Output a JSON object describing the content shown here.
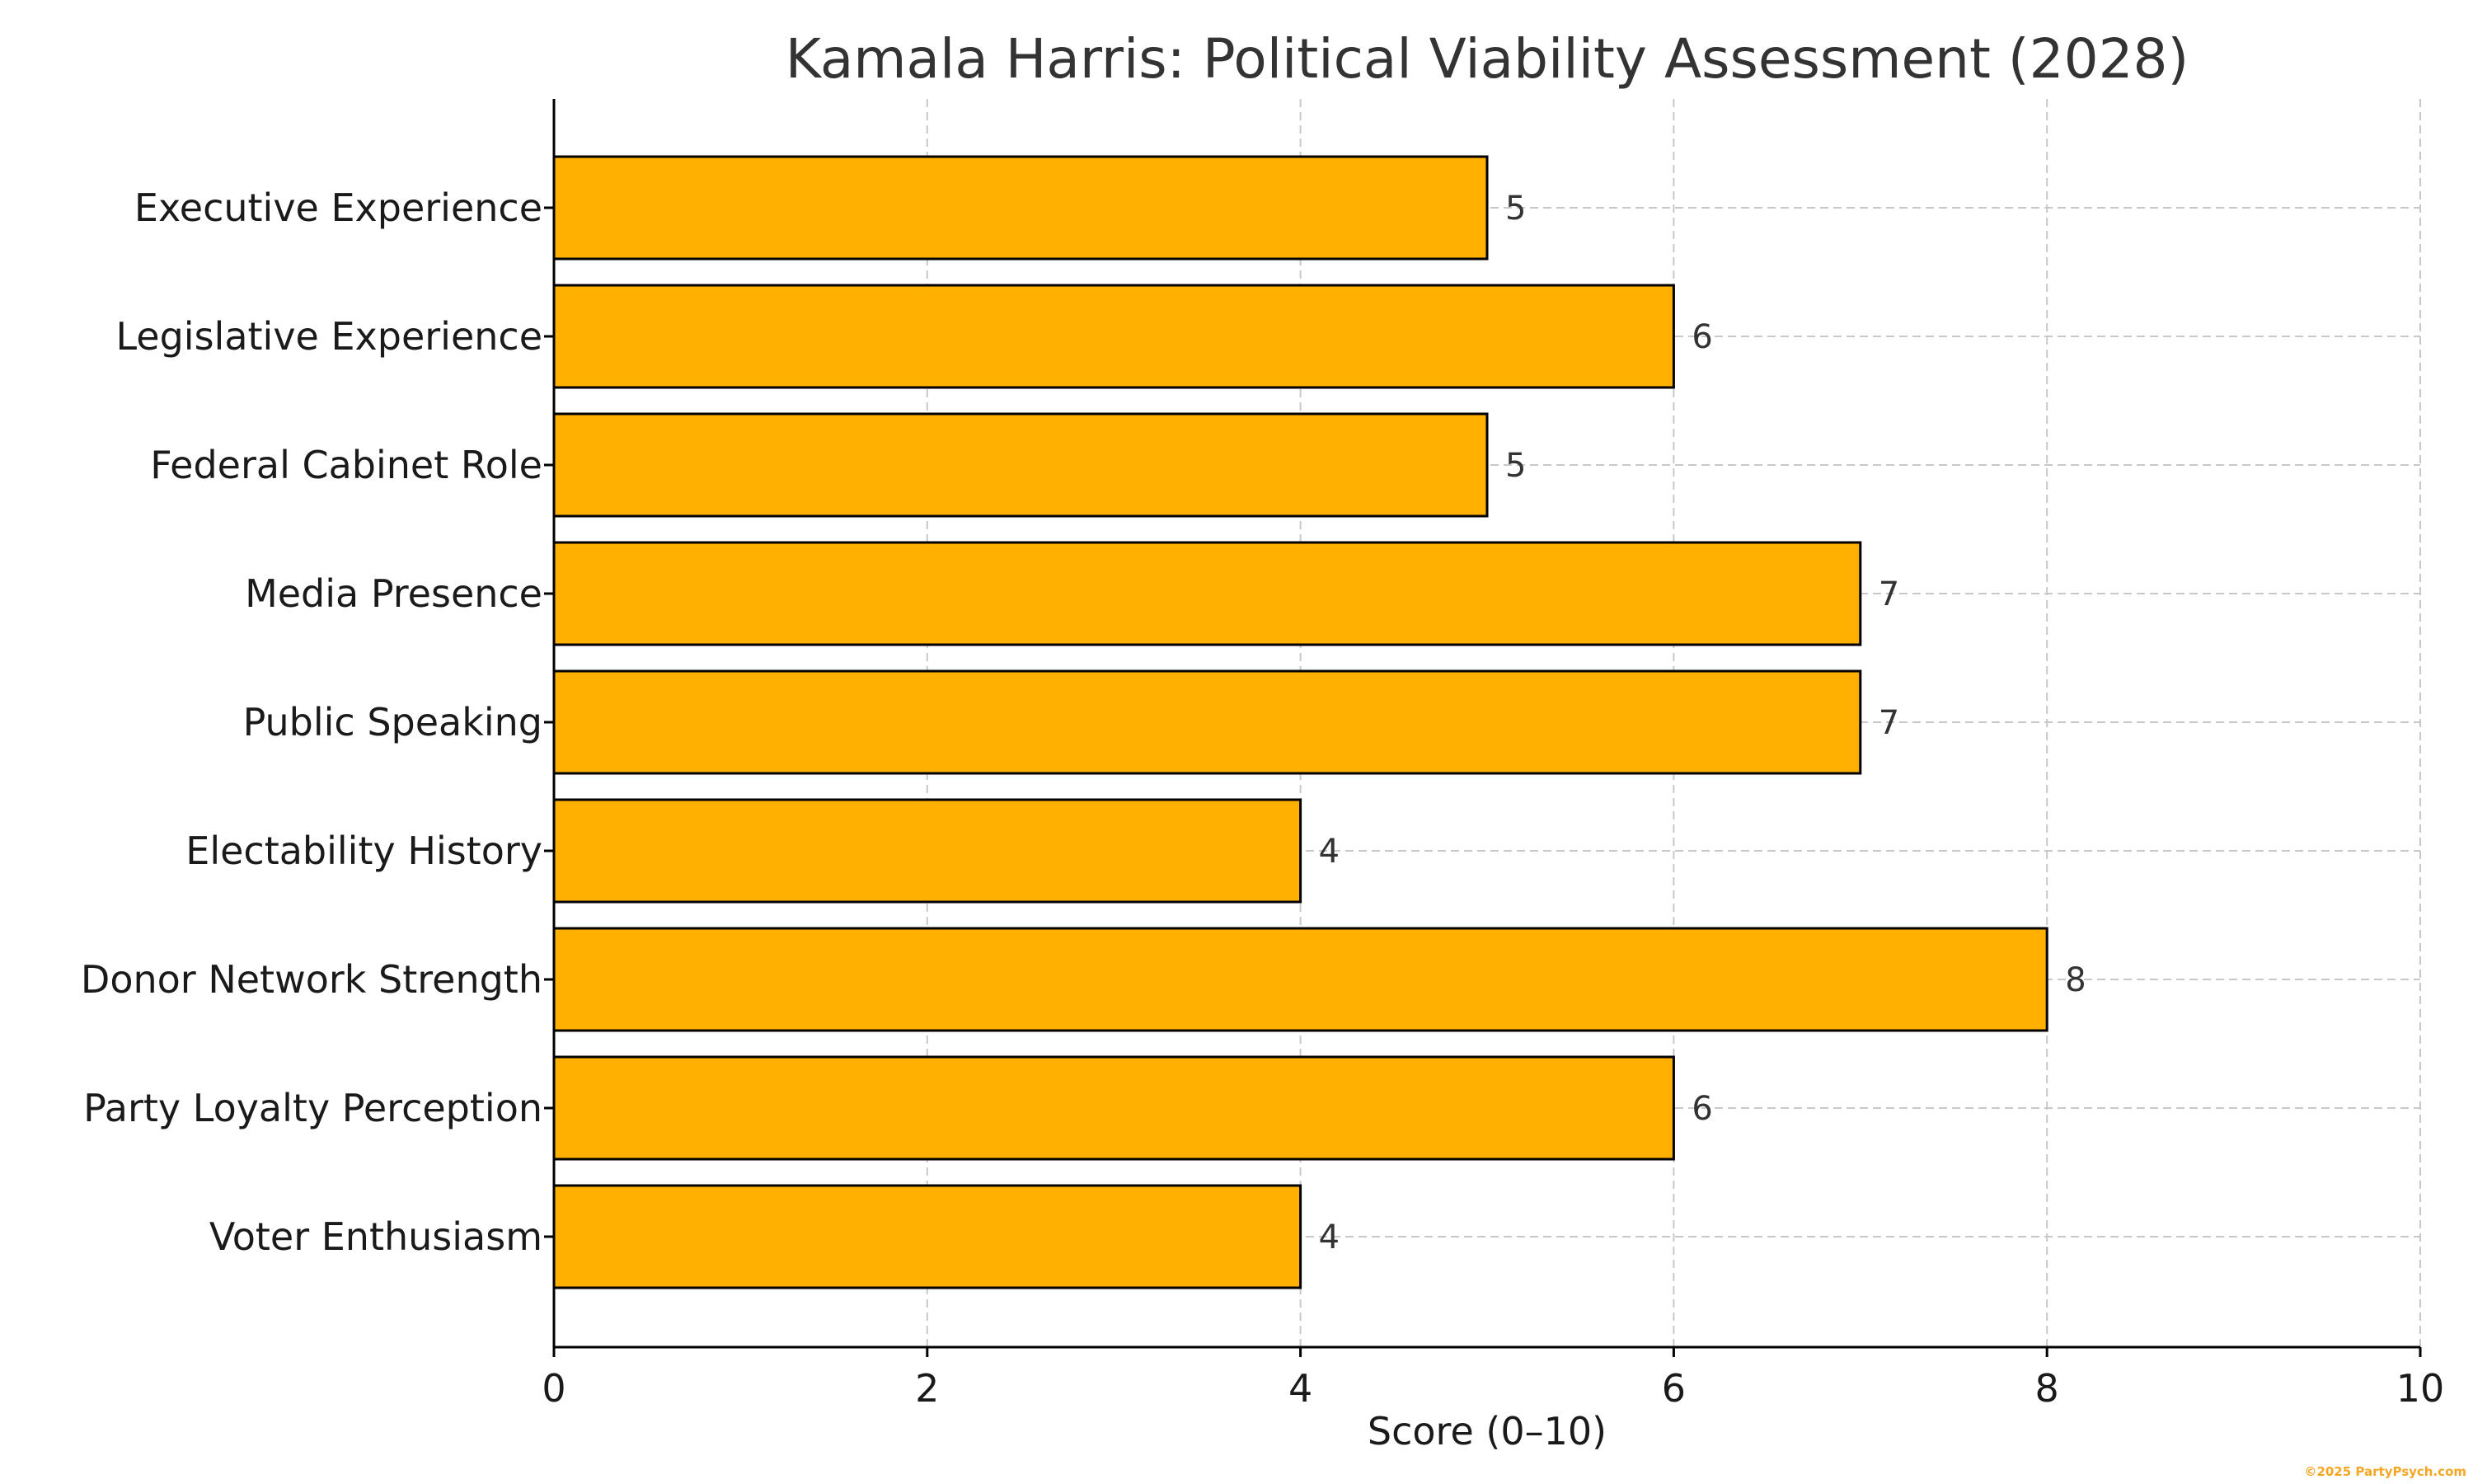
{
  "chart_data": {
    "type": "bar",
    "orientation": "horizontal",
    "title": "Kamala Harris: Political Viability Assessment (2028)",
    "xlabel": "Score (0–10)",
    "ylabel": "",
    "xlim": [
      0,
      10
    ],
    "xticks": [
      0,
      2,
      4,
      6,
      8,
      10
    ],
    "grid": true,
    "categories": [
      "Executive Experience",
      "Legislative Experience",
      "Federal Cabinet Role",
      "Media Presence",
      "Public Speaking",
      "Electability History",
      "Donor Network Strength",
      "Party Loyalty Perception",
      "Voter Enthusiasm"
    ],
    "values": [
      5,
      6,
      5,
      7,
      7,
      4,
      8,
      6,
      4
    ],
    "bar_color": "#FFB000",
    "bar_edge_color": "#000000",
    "grid_color": "#c8c8c8"
  },
  "watermark": {
    "text": "©2025 PartyPsych.com",
    "color": "#F5A623"
  }
}
